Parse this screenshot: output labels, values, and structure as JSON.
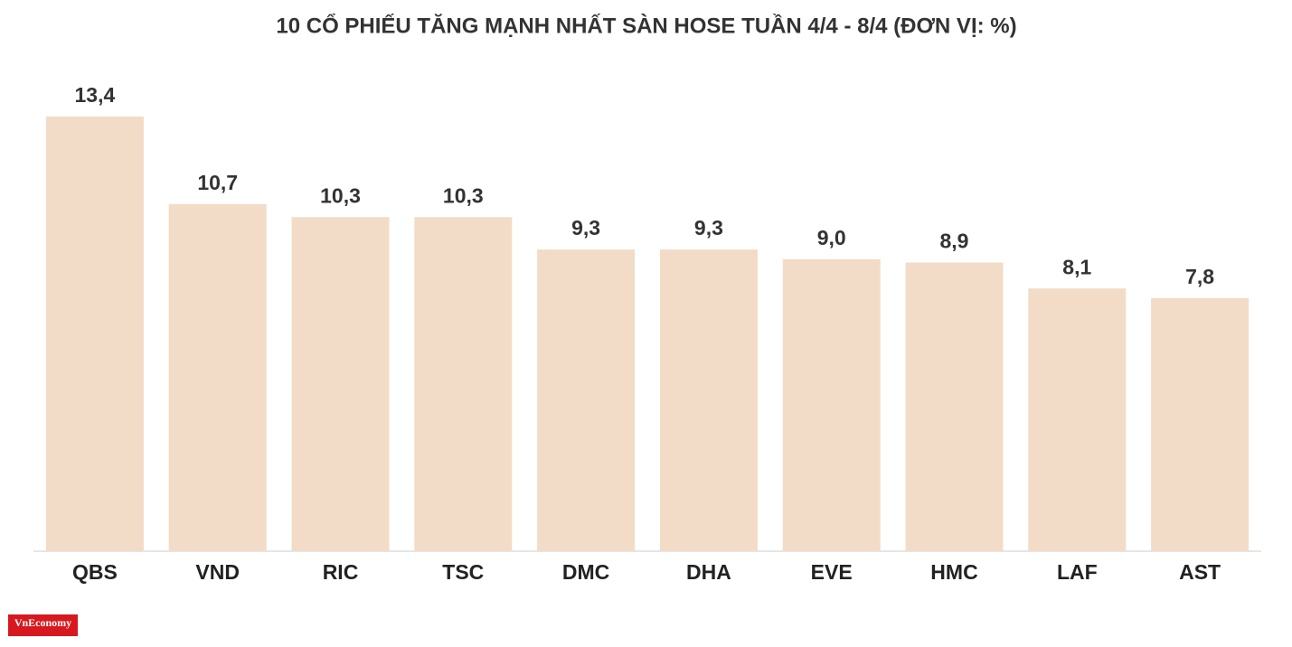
{
  "chart_data": {
    "type": "bar",
    "title": "10 CỔ PHIẾU TĂNG MẠNH NHẤT SÀN HOSE TUẦN 4/4 - 8/4 (ĐƠN VỊ: %)",
    "categories": [
      "QBS",
      "VND",
      "RIC",
      "TSC",
      "DMC",
      "DHA",
      "EVE",
      "HMC",
      "LAF",
      "AST"
    ],
    "values": [
      13.4,
      10.7,
      10.3,
      10.3,
      9.3,
      9.3,
      9.0,
      8.9,
      8.1,
      7.8
    ],
    "value_labels": [
      "13,4",
      "10,7",
      "10,3",
      "10,3",
      "9,3",
      "9,3",
      "9,0",
      "8,9",
      "8,1",
      "7,8"
    ],
    "color": "#f2dcc8",
    "source": "VnEconomy"
  }
}
